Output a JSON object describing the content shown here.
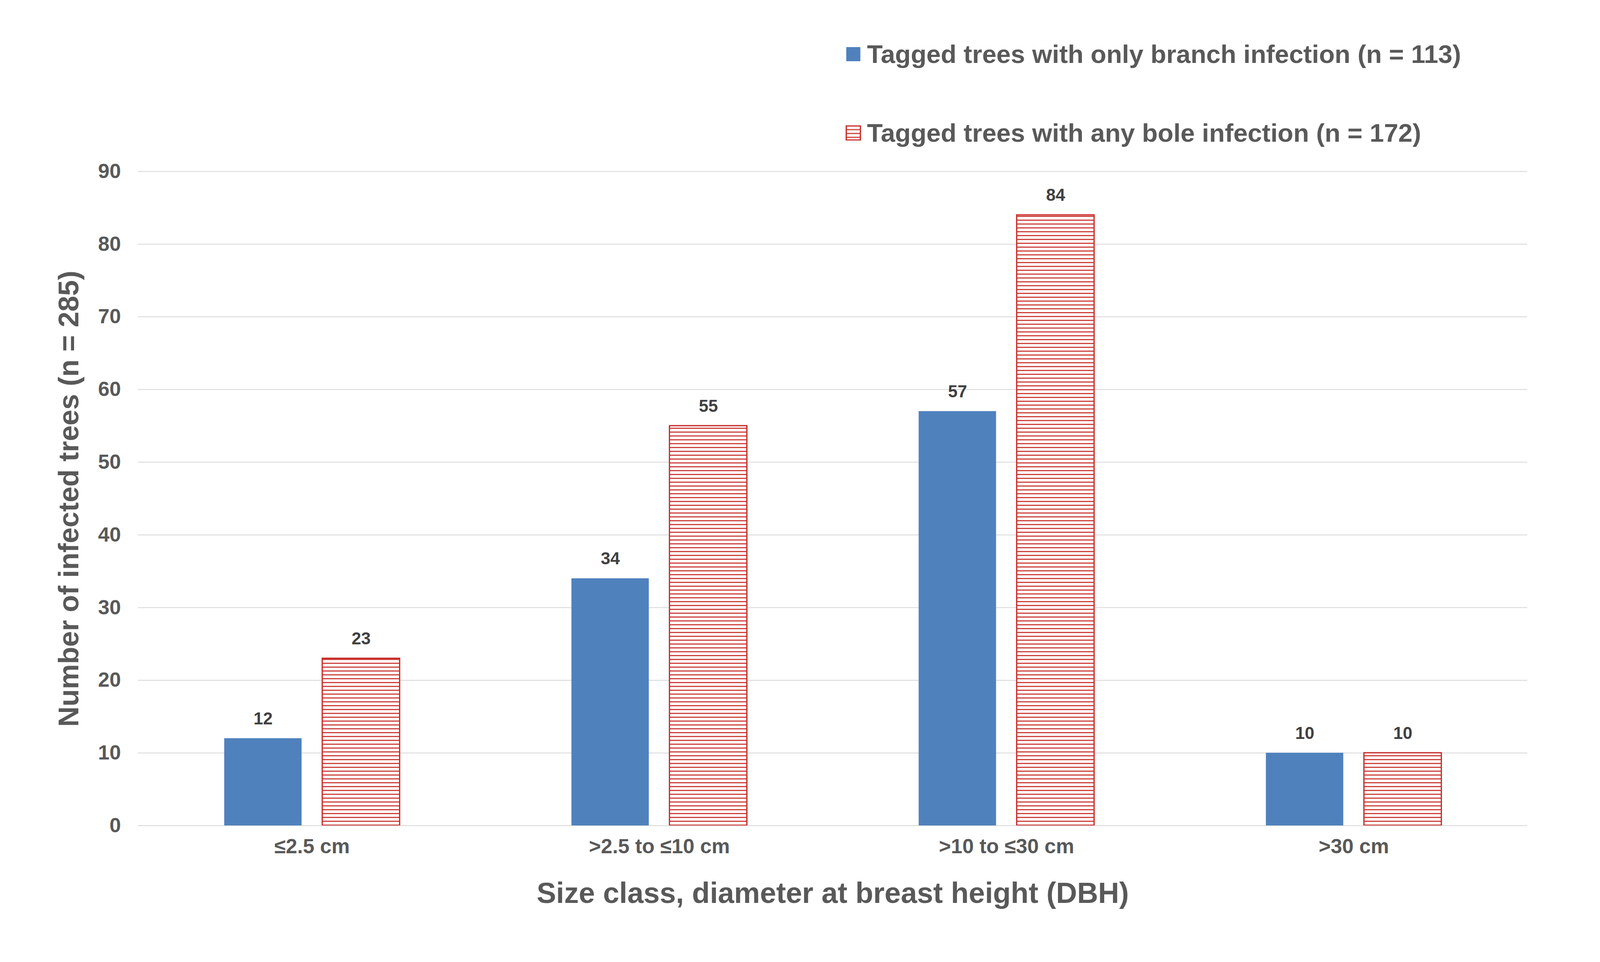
{
  "chart_data": {
    "type": "bar",
    "categories": [
      "≤2.5 cm",
      ">2.5 to ≤10 cm",
      ">10 to ≤30 cm",
      ">30 cm"
    ],
    "series": [
      {
        "name": "Tagged trees with only branch infection (n = 113)",
        "color": "#4f81bd",
        "values": [
          12,
          34,
          57,
          10
        ]
      },
      {
        "name": "Tagged trees with any bole infection (n = 172)",
        "color": "#c9302c",
        "values": [
          23,
          55,
          84,
          10
        ]
      }
    ],
    "x_label": "Size class, diameter at breast height (DBH)",
    "y_label": "Number of infected trees (n = 285)",
    "ylim": [
      0,
      90
    ],
    "yticks": [
      0,
      10,
      20,
      30,
      40,
      50,
      60,
      70,
      80,
      90
    ],
    "grid": true,
    "legend": "top-right",
    "data_labels": true
  }
}
